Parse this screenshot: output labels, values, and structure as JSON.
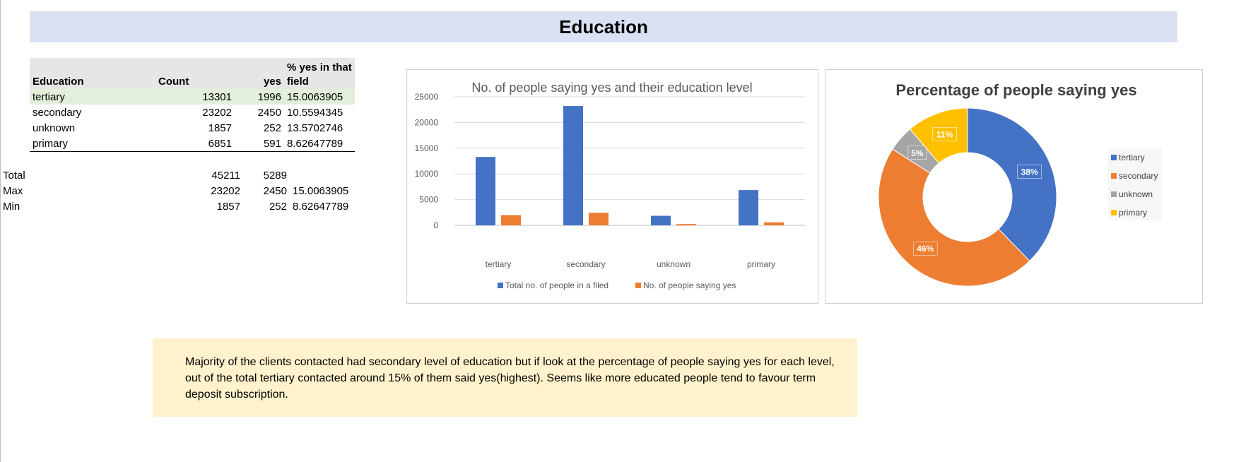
{
  "title": "Education",
  "table": {
    "headers": {
      "education": "Education",
      "count": "Count",
      "yes": "yes",
      "pct_line1": "% yes in that",
      "pct_line2": "field"
    },
    "rows": [
      {
        "education": "tertiary",
        "count": "13301",
        "yes": "1996",
        "pct": "15.0063905"
      },
      {
        "education": "secondary",
        "count": "23202",
        "yes": "2450",
        "pct": "10.5594345"
      },
      {
        "education": "unknown",
        "count": "1857",
        "yes": "252",
        "pct": "13.5702746"
      },
      {
        "education": "primary",
        "count": "6851",
        "yes": "591",
        "pct": "8.62647789"
      }
    ],
    "summary": [
      {
        "label": "Total",
        "count": "45211",
        "yes": "5289",
        "pct": ""
      },
      {
        "label": "Max",
        "count": "23202",
        "yes": "2450",
        "pct": "15.0063905"
      },
      {
        "label": "Min",
        "count": "1857",
        "yes": "252",
        "pct": "8.62647789"
      }
    ]
  },
  "chart_data": [
    {
      "type": "bar",
      "title": "No. of people saying yes and their education level",
      "categories": [
        "tertiary",
        "secondary",
        "unknown",
        "primary"
      ],
      "series": [
        {
          "name": "Total no. of people in a filed",
          "values": [
            13301,
            23202,
            1857,
            6851
          ],
          "color": "#4472c4"
        },
        {
          "name": "No. of people saying yes",
          "values": [
            1996,
            2450,
            252,
            591
          ],
          "color": "#ed7d31"
        }
      ],
      "yticks": [
        "0",
        "5000",
        "10000",
        "15000",
        "20000",
        "25000"
      ],
      "ylim": [
        0,
        25000
      ],
      "grid": true,
      "legend": "bottom"
    },
    {
      "type": "pie",
      "donut": true,
      "title": "Percentage of people saying yes",
      "categories": [
        "tertiary",
        "secondary",
        "unknown",
        "primary"
      ],
      "values": [
        1996,
        2450,
        252,
        591
      ],
      "labels": [
        "38%",
        "46%",
        "5%",
        "11%"
      ],
      "colors": [
        "#4472c4",
        "#ed7d31",
        "#a5a5a5",
        "#ffc000"
      ],
      "legend": "right"
    }
  ],
  "note": "Majority of the clients contacted had secondary level of education but if look at the percentage of people saying yes for each level, out of the total tertiary contacted around 15% of them said yes(highest). Seems like more educated people tend to favour term deposit subscription."
}
